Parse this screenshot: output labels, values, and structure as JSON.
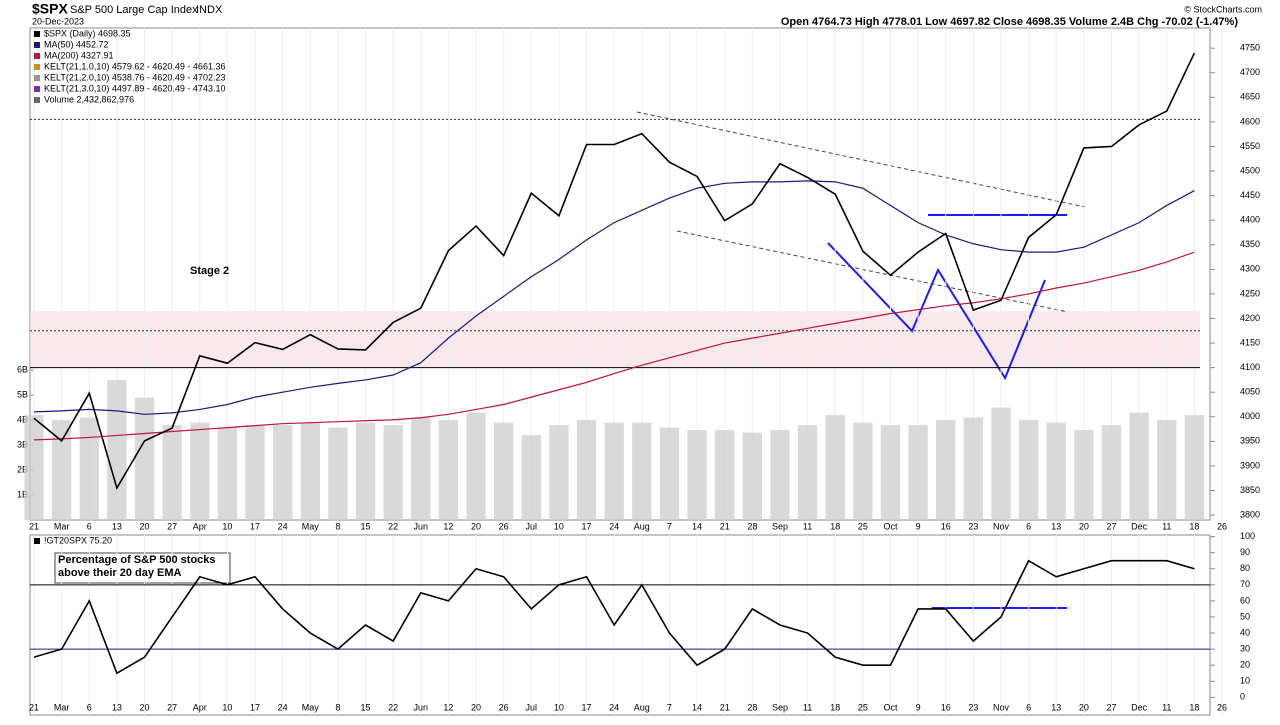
{
  "header": {
    "symbol": "$SPX",
    "name": "S&P 500 Large Cap Index",
    "exchange": "INDX",
    "date": "20-Dec-2023",
    "credit": "© StockCharts.com",
    "quote": "Open 4764.73  High 4778.01  Low 4697.82  Close 4698.35  Volume 2.4B  Chg -70.02 (-1.47%)"
  },
  "chart_data": [
    {
      "type": "line",
      "legend": [
        {
          "text": "$SPX (Daily) 4698.35",
          "color": "#000000"
        },
        {
          "text": "MA(50) 4452.72",
          "color": "#1a1a80"
        },
        {
          "text": "MA(200) 4327.91",
          "color": "#c0143c"
        },
        {
          "text": "KELT(21,1.0,10) 4579.62 - 4620.49 - 4661.36",
          "color": "#d09020"
        },
        {
          "text": "KELT(21,2.0,10) 4538.76 - 4620.49 - 4702.23",
          "color": "#999999"
        },
        {
          "text": "KELT(21,3.0,10) 4497.89 - 4620.49 - 4743.10",
          "color": "#8030a0"
        },
        {
          "text": "Volume 2,432,862,976",
          "color": "#666666"
        }
      ],
      "annotations": [
        "Stage 2"
      ],
      "categories": [
        "21",
        "Mar",
        "6",
        "13",
        "20",
        "27",
        "Apr",
        "10",
        "17",
        "24",
        "May",
        "8",
        "15",
        "22",
        "Jun",
        "12",
        "20",
        "26",
        "Jul",
        "10",
        "17",
        "24",
        "Aug",
        "7",
        "14",
        "21",
        "28",
        "Sep",
        "11",
        "18",
        "25",
        "Oct",
        "9",
        "16",
        "23",
        "Nov",
        "6",
        "13",
        "20",
        "27",
        "Dec",
        "11",
        "18",
        "26"
      ],
      "series": [
        {
          "name": "Volume",
          "type": "bar",
          "axis": "y2",
          "color": "#d0d0d0",
          "values": [
            4.2,
            4.0,
            4.1,
            5.6,
            4.9,
            3.8,
            3.9,
            3.7,
            3.8,
            3.8,
            3.9,
            3.7,
            3.9,
            3.8,
            4.1,
            4.0,
            4.3,
            3.9,
            3.4,
            3.8,
            4.0,
            3.9,
            3.9,
            3.7,
            3.6,
            3.6,
            3.5,
            3.6,
            3.8,
            4.2,
            3.9,
            3.8,
            3.8,
            4.0,
            4.1,
            4.5,
            4.0,
            3.9,
            3.6,
            3.8,
            4.3,
            4.0,
            4.2,
            null
          ]
        },
        {
          "name": "MA(200)",
          "color": "#c0143c",
          "values": [
            3953,
            3955,
            3958,
            3962,
            3966,
            3970,
            3974,
            3978,
            3982,
            3986,
            3988,
            3990,
            3992,
            3994,
            3998,
            4005,
            4015,
            4025,
            4040,
            4055,
            4070,
            4088,
            4105,
            4120,
            4135,
            4150,
            4160,
            4170,
            4180,
            4190,
            4200,
            4210,
            4218,
            4226,
            4232,
            4240,
            4250,
            4262,
            4272,
            4285,
            4298,
            4315,
            4335,
            null
          ]
        },
        {
          "name": "MA(50)",
          "color": "#1a1a80",
          "values": [
            4010,
            4012,
            4015,
            4012,
            4005,
            4008,
            4015,
            4025,
            4040,
            4050,
            4060,
            4068,
            4075,
            4085,
            4110,
            4160,
            4205,
            4245,
            4285,
            4320,
            4360,
            4395,
            4420,
            4445,
            4465,
            4475,
            4478,
            4478,
            4480,
            4478,
            4465,
            4430,
            4395,
            4370,
            4352,
            4340,
            4335,
            4335,
            4345,
            4370,
            4395,
            4430,
            4460,
            null
          ]
        },
        {
          "name": "$SPX (Daily)",
          "color": "#000000",
          "values": [
            3997,
            3951,
            4048,
            3855,
            3951,
            3977,
            4124,
            4109,
            4151,
            4137,
            4167,
            4138,
            4136,
            4192,
            4221,
            4338,
            4388,
            4328,
            4455,
            4409,
            4554,
            4554,
            4576,
            4518,
            4489,
            4399,
            4433,
            4515,
            4487,
            4453,
            4337,
            4288,
            4335,
            4373,
            4217,
            4237,
            4365,
            4411,
            4547,
            4550,
            4594,
            4622,
            4740,
            null
          ]
        }
      ],
      "zone": [
        4100,
        4215
      ],
      "reference_lines": [
        {
          "value": 4100,
          "dash": false
        },
        {
          "value": 4175,
          "dash": true
        },
        {
          "value": 4605,
          "dash": true
        }
      ],
      "ylim": [
        3790,
        4791
      ],
      "yticks": [
        3800,
        3850,
        3900,
        3950,
        4000,
        4050,
        4100,
        4150,
        4200,
        4250,
        4300,
        4350,
        4400,
        4450,
        4500,
        4550,
        4600,
        4650,
        4700,
        4750
      ],
      "y2lim": [
        0,
        19.7
      ],
      "y2ticks": [
        {
          "value": 1,
          "label": "1B"
        },
        {
          "value": 2,
          "label": "2B"
        },
        {
          "value": 3,
          "label": "3B"
        },
        {
          "value": 4,
          "label": "4B"
        },
        {
          "value": 5,
          "label": "5B"
        },
        {
          "value": 6,
          "label": "6B"
        }
      ]
    },
    {
      "type": "line",
      "legend": [
        {
          "text": "!GT20SPX 75.20",
          "color": "#000000"
        }
      ],
      "annotations": [
        "Percentage of S&P 500 stocks",
        "above their 20 day EMA"
      ],
      "series": [
        {
          "name": "!GT20SPX",
          "color": "#000000",
          "values": [
            25,
            30,
            60,
            15,
            25,
            50,
            75,
            70,
            75,
            55,
            40,
            30,
            45,
            35,
            65,
            60,
            80,
            75,
            55,
            70,
            75,
            45,
            70,
            40,
            20,
            30,
            55,
            45,
            40,
            25,
            20,
            20,
            55,
            55,
            35,
            50,
            85,
            75,
            80,
            85,
            85,
            85,
            80,
            null
          ]
        }
      ],
      "reference_lines": [
        {
          "value": 70,
          "color": "#000000"
        },
        {
          "value": 30,
          "color": "#1a1a80"
        }
      ],
      "ylim": [
        -11,
        101
      ],
      "yticks": [
        0,
        10,
        20,
        30,
        40,
        50,
        60,
        70,
        80,
        90,
        100
      ]
    }
  ]
}
